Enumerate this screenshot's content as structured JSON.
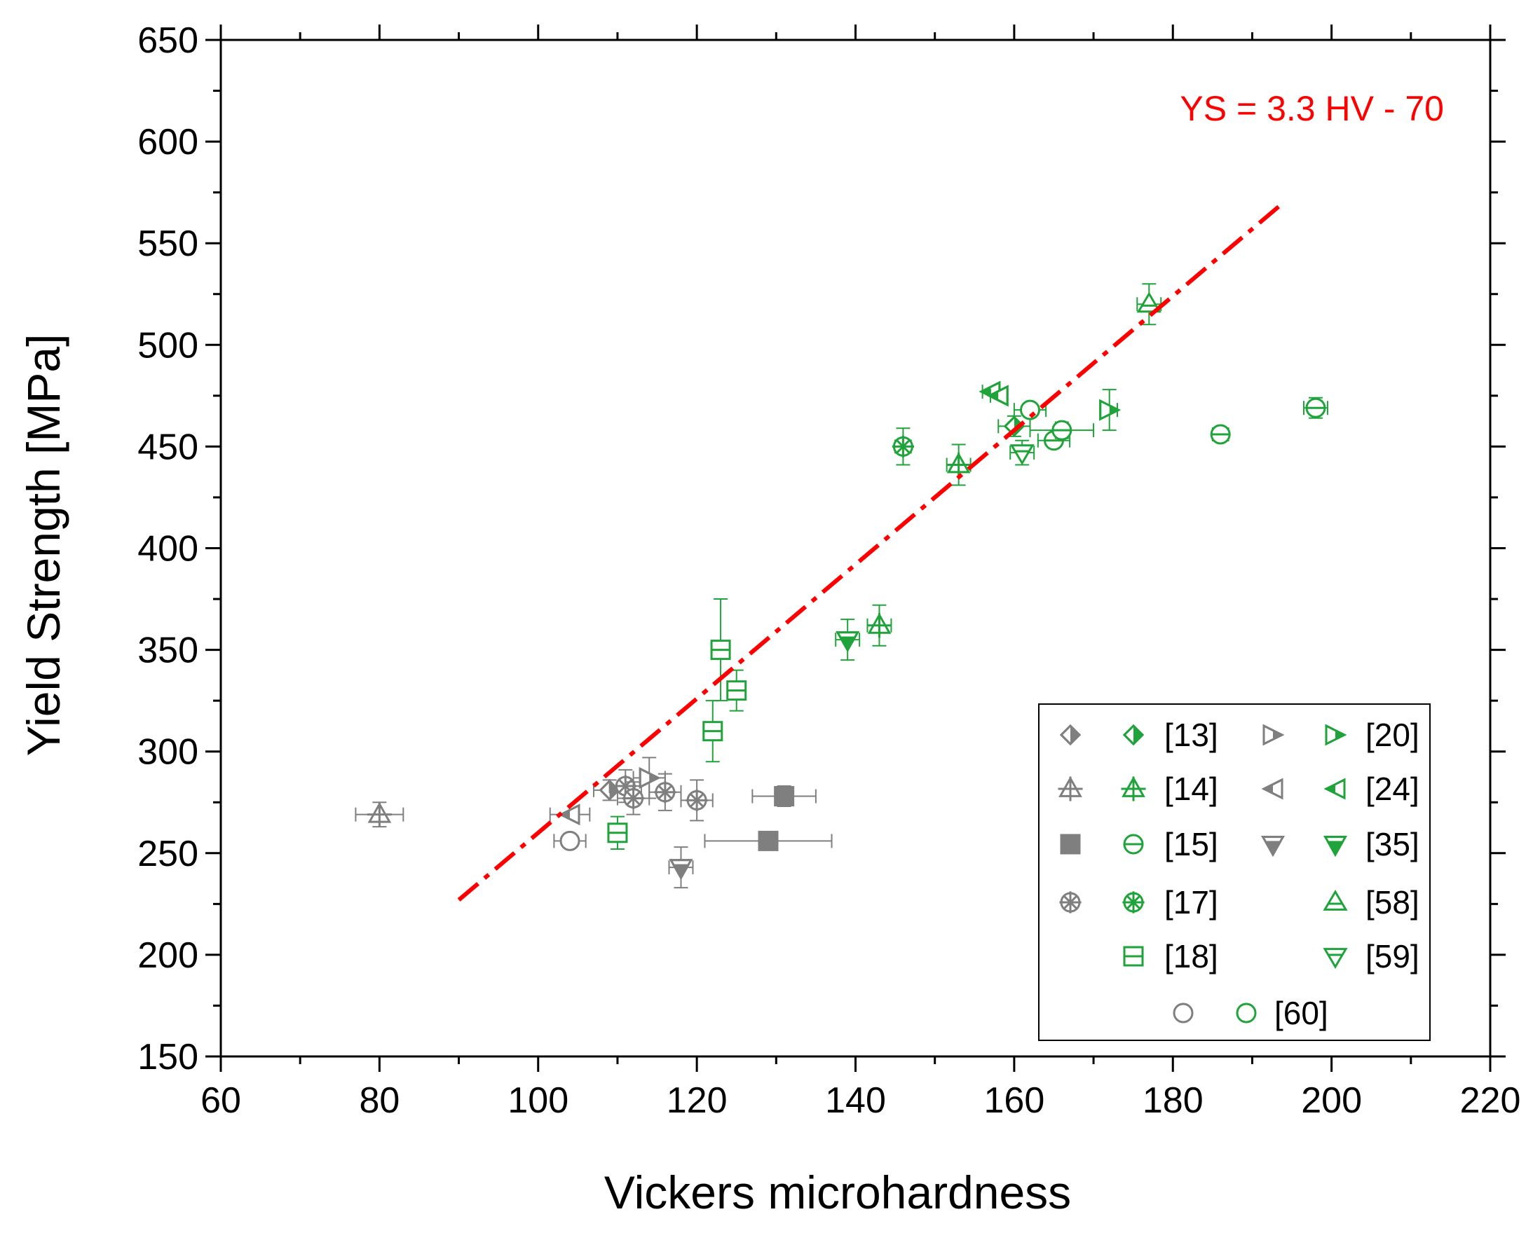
{
  "chart_data": {
    "type": "scatter",
    "xlabel": "Vickers microhardness",
    "ylabel": "Yield Strength [MPa]",
    "xlim": [
      60,
      220
    ],
    "ylim": [
      150,
      650
    ],
    "xticks": [
      60,
      80,
      100,
      120,
      140,
      160,
      180,
      200,
      220
    ],
    "yticks": [
      150,
      200,
      250,
      300,
      350,
      400,
      450,
      500,
      550,
      600,
      650
    ],
    "xtick_labels": [
      "60",
      "80",
      "100",
      "120",
      "140",
      "160",
      "180",
      "200",
      "220"
    ],
    "ytick_labels": [
      "150",
      "200",
      "250",
      "300",
      "350",
      "400",
      "450",
      "500",
      "550",
      "600",
      "650"
    ],
    "grid": false,
    "legend_position": "bottom-right",
    "colors": {
      "gray": "#7f7f7f",
      "green": "#1fa33a",
      "fit": "#ff0000"
    },
    "fit_line": {
      "label": "YS = 3.3 HV - 70",
      "slope": 3.3,
      "intercept": -70,
      "x_range": [
        90,
        194
      ],
      "style": "dash-dot",
      "color": "#ff0000"
    },
    "series": [
      {
        "name": "[13] gray",
        "ref": "[13]",
        "color": "#7f7f7f",
        "marker": "diamond-half",
        "points": [
          {
            "x": 109,
            "y": 281,
            "xerr": 2,
            "yerr": 5
          }
        ]
      },
      {
        "name": "[13] green",
        "ref": "[13]",
        "color": "#1fa33a",
        "marker": "diamond-half",
        "points": [
          {
            "x": 160,
            "y": 460,
            "xerr": 2,
            "yerr": 5
          }
        ]
      },
      {
        "name": "[14] gray",
        "ref": "[14]",
        "color": "#7f7f7f",
        "marker": "triangle-up-cross",
        "points": [
          {
            "x": 80,
            "y": 269,
            "xerr": 3,
            "yerr": 6
          }
        ]
      },
      {
        "name": "[14] green",
        "ref": "[14]",
        "color": "#1fa33a",
        "marker": "triangle-up-cross",
        "points": [
          {
            "x": 143,
            "y": 362,
            "xerr": 1.5,
            "yerr": 10
          },
          {
            "x": 153,
            "y": 441,
            "xerr": 1.5,
            "yerr": 10
          }
        ]
      },
      {
        "name": "[15] gray",
        "ref": "[15]",
        "color": "#7f7f7f",
        "marker": "square-filled",
        "points": [
          {
            "x": 131,
            "y": 278,
            "xerr": 4,
            "yerr": 5
          },
          {
            "x": 129,
            "y": 256,
            "xerr": 8,
            "yerr": 0
          }
        ]
      },
      {
        "name": "[15] green",
        "ref": "[15]",
        "color": "#1fa33a",
        "marker": "circle-line",
        "points": [
          {
            "x": 165,
            "y": 453,
            "xerr": 2,
            "yerr": 3
          },
          {
            "x": 166,
            "y": 458,
            "xerr": 4,
            "yerr": 4
          },
          {
            "x": 186,
            "y": 456,
            "xerr": 1,
            "yerr": 3
          },
          {
            "x": 198,
            "y": 469,
            "xerr": 1.5,
            "yerr": 5
          }
        ]
      },
      {
        "name": "[17] gray",
        "ref": "[17]",
        "color": "#7f7f7f",
        "marker": "circle-x",
        "points": [
          {
            "x": 111,
            "y": 283,
            "xerr": 2,
            "yerr": 8
          },
          {
            "x": 112,
            "y": 277,
            "xerr": 2,
            "yerr": 8
          },
          {
            "x": 116,
            "y": 280,
            "xerr": 2,
            "yerr": 9
          },
          {
            "x": 120,
            "y": 276,
            "xerr": 2,
            "yerr": 10
          }
        ]
      },
      {
        "name": "[17] green",
        "ref": "[17]",
        "color": "#1fa33a",
        "marker": "circle-x",
        "points": [
          {
            "x": 146,
            "y": 450,
            "xerr": 1,
            "yerr": 9
          }
        ]
      },
      {
        "name": "[18] green",
        "ref": "[18]",
        "color": "#1fa33a",
        "marker": "square-line",
        "points": [
          {
            "x": 110,
            "y": 260,
            "xerr": 1,
            "yerr": 8
          },
          {
            "x": 122,
            "y": 310,
            "xerr": 1,
            "yerr": 15
          },
          {
            "x": 123,
            "y": 350,
            "xerr": 1,
            "yerr": 25
          },
          {
            "x": 125,
            "y": 330,
            "xerr": 1,
            "yerr": 10
          }
        ]
      },
      {
        "name": "[20] gray",
        "ref": "[20]",
        "color": "#7f7f7f",
        "marker": "triangle-right-half",
        "points": [
          {
            "x": 114,
            "y": 287,
            "xerr": 2,
            "yerr": 10
          }
        ]
      },
      {
        "name": "[20] green",
        "ref": "[20]",
        "color": "#1fa33a",
        "marker": "triangle-right-half",
        "points": [
          {
            "x": 172,
            "y": 468,
            "xerr": 1,
            "yerr": 10
          }
        ]
      },
      {
        "name": "[24] gray",
        "ref": "[24]",
        "color": "#7f7f7f",
        "marker": "triangle-left-half",
        "points": [
          {
            "x": 104,
            "y": 269,
            "xerr": 2.5,
            "yerr": 0
          }
        ]
      },
      {
        "name": "[24] green",
        "ref": "[24]",
        "color": "#1fa33a",
        "marker": "triangle-left-half",
        "points": [
          {
            "x": 157,
            "y": 477,
            "xerr": 1,
            "yerr": 0
          },
          {
            "x": 158,
            "y": 475,
            "xerr": 1,
            "yerr": 0
          }
        ]
      },
      {
        "name": "[35] gray",
        "ref": "[35]",
        "color": "#7f7f7f",
        "marker": "triangle-down-half",
        "points": [
          {
            "x": 118,
            "y": 243,
            "xerr": 1.5,
            "yerr": 10
          }
        ]
      },
      {
        "name": "[35] green",
        "ref": "[35]",
        "color": "#1fa33a",
        "marker": "triangle-down-half",
        "points": [
          {
            "x": 139,
            "y": 355,
            "xerr": 1.5,
            "yerr": 10
          }
        ]
      },
      {
        "name": "[58] green",
        "ref": "[58]",
        "color": "#1fa33a",
        "marker": "triangle-up-line",
        "points": [
          {
            "x": 177,
            "y": 520,
            "xerr": 1.5,
            "yerr": 10
          }
        ]
      },
      {
        "name": "[59] green",
        "ref": "[59]",
        "color": "#1fa33a",
        "marker": "triangle-down-line",
        "points": [
          {
            "x": 161,
            "y": 447,
            "xerr": 1.5,
            "yerr": 6
          }
        ]
      },
      {
        "name": "[60] gray",
        "ref": "[60]",
        "color": "#7f7f7f",
        "marker": "circle-open",
        "points": [
          {
            "x": 104,
            "y": 256,
            "xerr": 2,
            "yerr": 0
          }
        ]
      },
      {
        "name": "[60] green",
        "ref": "[60]",
        "color": "#1fa33a",
        "marker": "circle-open",
        "points": [
          {
            "x": 162,
            "y": 468,
            "xerr": 2,
            "yerr": 0
          }
        ]
      }
    ],
    "legend": [
      {
        "label": "[13]",
        "gray_marker": "diamond-half",
        "green_marker": "diamond-half"
      },
      {
        "label": "[14]",
        "gray_marker": "triangle-up-cross",
        "green_marker": "triangle-up-cross"
      },
      {
        "label": "[15]",
        "gray_marker": "square-filled",
        "green_marker": "circle-line"
      },
      {
        "label": "[17]",
        "gray_marker": "circle-x",
        "green_marker": "circle-x"
      },
      {
        "label": "[18]",
        "gray_marker": null,
        "green_marker": "square-line"
      },
      {
        "label": "[20]",
        "gray_marker": "triangle-right-half",
        "green_marker": "triangle-right-half"
      },
      {
        "label": "[24]",
        "gray_marker": "triangle-left-half",
        "green_marker": "triangle-left-half"
      },
      {
        "label": "[35]",
        "gray_marker": "triangle-down-half",
        "green_marker": "triangle-down-half"
      },
      {
        "label": "[58]",
        "gray_marker": null,
        "green_marker": "triangle-up-line"
      },
      {
        "label": "[59]",
        "gray_marker": null,
        "green_marker": "triangle-down-line"
      },
      {
        "label": "[60]",
        "gray_marker": "circle-open",
        "green_marker": "circle-open"
      }
    ]
  }
}
